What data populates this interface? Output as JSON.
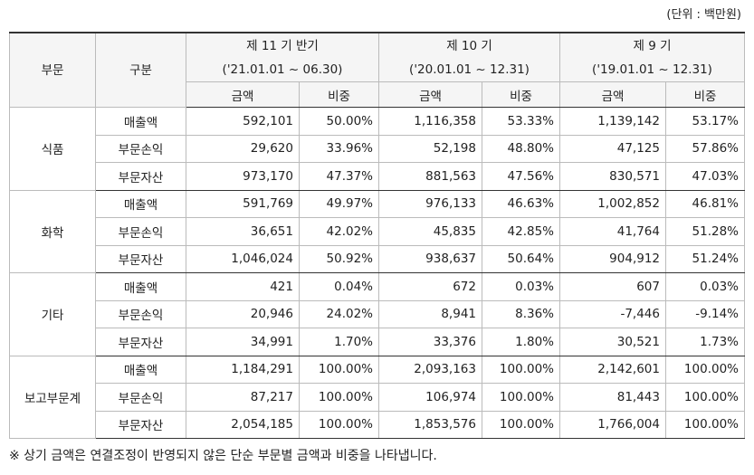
{
  "unit_note": "(단위 : 백만원)",
  "table": {
    "headers": {
      "segment": "부문",
      "item": "구분",
      "periods": [
        {
          "name": "제 11 기 반기",
          "range": "('21.01.01 ~ 06.30)",
          "amount_label": "금액",
          "ratio_label": "비중"
        },
        {
          "name": "제 10 기",
          "range": "('20.01.01 ~ 12.31)",
          "amount_label": "금액",
          "ratio_label": "비중"
        },
        {
          "name": "제 9 기",
          "range": "('19.01.01 ~ 12.31)",
          "amount_label": "금액",
          "ratio_label": "비중"
        }
      ]
    },
    "groups": [
      {
        "segment": "식품",
        "rows": [
          {
            "item": "매출액",
            "cells": [
              "592,101",
              "50.00%",
              "1,116,358",
              "53.33%",
              "1,139,142",
              "53.17%"
            ]
          },
          {
            "item": "부문손익",
            "cells": [
              "29,620",
              "33.96%",
              "52,198",
              "48.80%",
              "47,125",
              "57.86%"
            ]
          },
          {
            "item": "부문자산",
            "cells": [
              "973,170",
              "47.37%",
              "881,563",
              "47.56%",
              "830,571",
              "47.03%"
            ]
          }
        ]
      },
      {
        "segment": "화학",
        "rows": [
          {
            "item": "매출액",
            "cells": [
              "591,769",
              "49.97%",
              "976,133",
              "46.63%",
              "1,002,852",
              "46.81%"
            ]
          },
          {
            "item": "부문손익",
            "cells": [
              "36,651",
              "42.02%",
              "45,835",
              "42.85%",
              "41,764",
              "51.28%"
            ]
          },
          {
            "item": "부문자산",
            "cells": [
              "1,046,024",
              "50.92%",
              "938,637",
              "50.64%",
              "904,912",
              "51.24%"
            ]
          }
        ]
      },
      {
        "segment": "기타",
        "rows": [
          {
            "item": "매출액",
            "cells": [
              "421",
              "0.04%",
              "672",
              "0.03%",
              "607",
              "0.03%"
            ]
          },
          {
            "item": "부문손익",
            "cells": [
              "20,946",
              "24.02%",
              "8,941",
              "8.36%",
              "-7,446",
              "-9.14%"
            ]
          },
          {
            "item": "부문자산",
            "cells": [
              "34,991",
              "1.70%",
              "33,376",
              "1.80%",
              "30,521",
              "1.73%"
            ]
          }
        ]
      },
      {
        "segment": "보고부문계",
        "rows": [
          {
            "item": "매출액",
            "cells": [
              "1,184,291",
              "100.00%",
              "2,093,163",
              "100.00%",
              "2,142,601",
              "100.00%"
            ]
          },
          {
            "item": "부문손익",
            "cells": [
              "87,217",
              "100.00%",
              "106,974",
              "100.00%",
              "81,443",
              "100.00%"
            ]
          },
          {
            "item": "부문자산",
            "cells": [
              "2,054,185",
              "100.00%",
              "1,853,576",
              "100.00%",
              "1,766,004",
              "100.00%"
            ]
          }
        ]
      }
    ]
  },
  "footnote": "※ 상기 금액은 연결조정이 반영되지 않은 단순 부문별 금액과 비중을 나타냅니다."
}
